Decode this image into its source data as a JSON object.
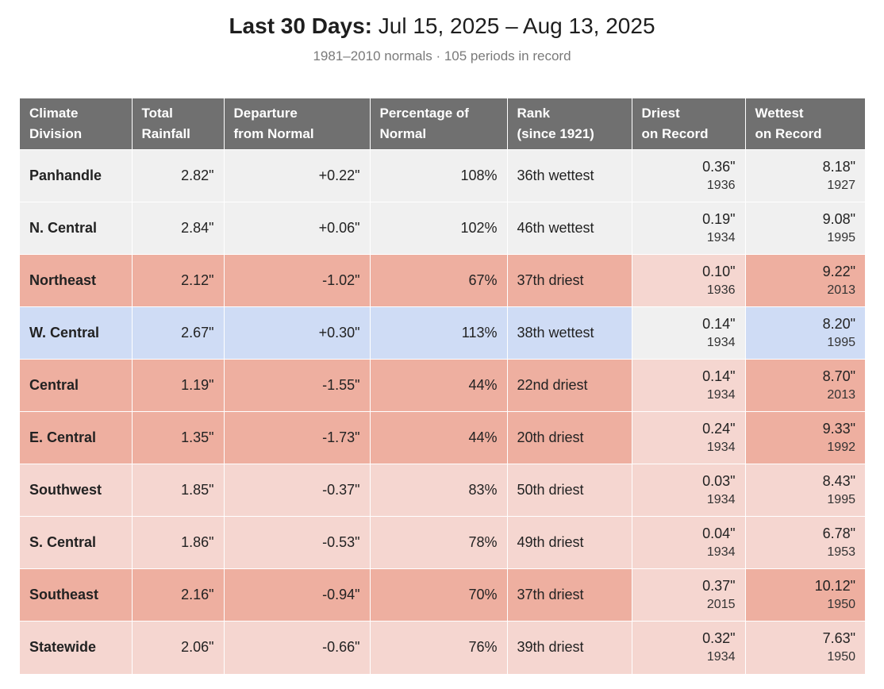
{
  "header": {
    "title_lead": "Last 30 Days:",
    "title_range": "Jul 15, 2025 – Aug 13, 2025",
    "subtitle": "1981–2010 normals · 105 periods in record"
  },
  "columns": [
    {
      "line1": "Climate",
      "line2": "Division"
    },
    {
      "line1": "Total",
      "line2": "Rainfall"
    },
    {
      "line1": "Departure",
      "line2": "from Normal"
    },
    {
      "line1": "Percentage of",
      "line2": "Normal"
    },
    {
      "line1": "Rank",
      "line2": "(since 1921)"
    },
    {
      "line1": "Driest",
      "line2": "on Record"
    },
    {
      "line1": "Wettest",
      "line2": "on Record"
    }
  ],
  "colors": {
    "header_bg": "#707070",
    "neutral": "#f0f0f0",
    "dry": "#eeafa0",
    "light_dry": "#f5d6d0",
    "wet": "#cfdcf5"
  },
  "rows": [
    {
      "division": "Panhandle",
      "total": "2.82\"",
      "departure": "+0.22\"",
      "percent": "108%",
      "rank": "36th wettest",
      "driest": "0.36\"",
      "driest_year": "1936",
      "wettest": "8.18\"",
      "wettest_year": "1927",
      "category": "neutral"
    },
    {
      "division": "N. Central",
      "total": "2.84\"",
      "departure": "+0.06\"",
      "percent": "102%",
      "rank": "46th wettest",
      "driest": "0.19\"",
      "driest_year": "1934",
      "wettest": "9.08\"",
      "wettest_year": "1995",
      "category": "neutral"
    },
    {
      "division": "Northeast",
      "total": "2.12\"",
      "departure": "-1.02\"",
      "percent": "67%",
      "rank": "37th driest",
      "driest": "0.10\"",
      "driest_year": "1936",
      "wettest": "9.22\"",
      "wettest_year": "2013",
      "category": "dry"
    },
    {
      "division": "W. Central",
      "total": "2.67\"",
      "departure": "+0.30\"",
      "percent": "113%",
      "rank": "38th wettest",
      "driest": "0.14\"",
      "driest_year": "1934",
      "wettest": "8.20\"",
      "wettest_year": "1995",
      "category": "wet"
    },
    {
      "division": "Central",
      "total": "1.19\"",
      "departure": "-1.55\"",
      "percent": "44%",
      "rank": "22nd driest",
      "driest": "0.14\"",
      "driest_year": "1934",
      "wettest": "8.70\"",
      "wettest_year": "2013",
      "category": "dry"
    },
    {
      "division": "E. Central",
      "total": "1.35\"",
      "departure": "-1.73\"",
      "percent": "44%",
      "rank": "20th driest",
      "driest": "0.24\"",
      "driest_year": "1934",
      "wettest": "9.33\"",
      "wettest_year": "1992",
      "category": "dry"
    },
    {
      "division": "Southwest",
      "total": "1.85\"",
      "departure": "-0.37\"",
      "percent": "83%",
      "rank": "50th driest",
      "driest": "0.03\"",
      "driest_year": "1934",
      "wettest": "8.43\"",
      "wettest_year": "1995",
      "category": "lightdry"
    },
    {
      "division": "S. Central",
      "total": "1.86\"",
      "departure": "-0.53\"",
      "percent": "78%",
      "rank": "49th driest",
      "driest": "0.04\"",
      "driest_year": "1934",
      "wettest": "6.78\"",
      "wettest_year": "1953",
      "category": "lightdry"
    },
    {
      "division": "Southeast",
      "total": "2.16\"",
      "departure": "-0.94\"",
      "percent": "70%",
      "rank": "37th driest",
      "driest": "0.37\"",
      "driest_year": "2015",
      "wettest": "10.12\"",
      "wettest_year": "1950",
      "category": "dry"
    },
    {
      "division": "Statewide",
      "total": "2.06\"",
      "departure": "-0.66\"",
      "percent": "76%",
      "rank": "39th driest",
      "driest": "0.32\"",
      "driest_year": "1934",
      "wettest": "7.63\"",
      "wettest_year": "1950",
      "category": "lightdry"
    }
  ]
}
